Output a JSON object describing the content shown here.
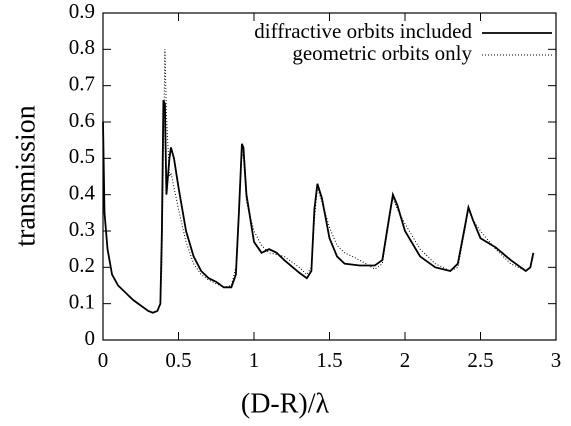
{
  "chart_data": {
    "type": "line",
    "xlabel": "(D-R)/λ",
    "ylabel": "transmission",
    "xlim": [
      0,
      3
    ],
    "xticks": [
      0,
      0.5,
      1,
      1.5,
      2,
      2.5,
      3
    ],
    "ylim": [
      0,
      0.9
    ],
    "yticks": [
      0,
      0.1,
      0.2,
      0.3,
      0.4,
      0.5,
      0.6,
      0.7,
      0.8,
      0.9
    ],
    "legend": "upper right",
    "x": [
      0,
      0.01,
      0.03,
      0.06,
      0.1,
      0.15,
      0.2,
      0.25,
      0.3,
      0.33,
      0.36,
      0.38,
      0.39,
      0.4,
      0.41,
      0.42,
      0.44,
      0.45,
      0.47,
      0.5,
      0.55,
      0.6,
      0.65,
      0.7,
      0.75,
      0.8,
      0.85,
      0.88,
      0.9,
      0.92,
      0.93,
      0.95,
      1.0,
      1.05,
      1.1,
      1.15,
      1.2,
      1.3,
      1.35,
      1.38,
      1.4,
      1.42,
      1.45,
      1.5,
      1.55,
      1.6,
      1.7,
      1.8,
      1.85,
      1.9,
      1.92,
      1.95,
      2.0,
      2.1,
      2.2,
      2.3,
      2.35,
      2.4,
      2.42,
      2.45,
      2.5,
      2.6,
      2.7,
      2.8,
      2.83,
      2.85
    ],
    "series": [
      {
        "name": "diffractive orbits included",
        "color": "#000000",
        "style": "solid",
        "values": [
          0.6,
          0.35,
          0.25,
          0.18,
          0.15,
          0.13,
          0.11,
          0.095,
          0.08,
          0.075,
          0.08,
          0.1,
          0.3,
          0.66,
          0.65,
          0.4,
          0.5,
          0.53,
          0.5,
          0.42,
          0.3,
          0.23,
          0.19,
          0.17,
          0.16,
          0.145,
          0.145,
          0.18,
          0.35,
          0.54,
          0.53,
          0.4,
          0.27,
          0.24,
          0.25,
          0.24,
          0.22,
          0.185,
          0.17,
          0.19,
          0.36,
          0.43,
          0.39,
          0.28,
          0.23,
          0.21,
          0.205,
          0.205,
          0.22,
          0.35,
          0.4,
          0.37,
          0.3,
          0.23,
          0.2,
          0.19,
          0.21,
          0.32,
          0.365,
          0.33,
          0.28,
          0.255,
          0.22,
          0.19,
          0.2,
          0.24
        ]
      },
      {
        "name": "geometric orbits only",
        "color": "#000000",
        "style": "dotted",
        "values": [
          0.6,
          0.35,
          0.25,
          0.18,
          0.15,
          0.13,
          0.11,
          0.095,
          0.08,
          0.075,
          0.08,
          0.1,
          0.2,
          0.5,
          0.8,
          0.62,
          0.45,
          0.46,
          0.42,
          0.36,
          0.27,
          0.21,
          0.18,
          0.165,
          0.155,
          0.145,
          0.15,
          0.2,
          0.36,
          0.52,
          0.5,
          0.38,
          0.3,
          0.26,
          0.24,
          0.235,
          0.23,
          0.2,
          0.18,
          0.2,
          0.33,
          0.42,
          0.38,
          0.31,
          0.26,
          0.24,
          0.22,
          0.195,
          0.21,
          0.34,
          0.39,
          0.36,
          0.32,
          0.25,
          0.21,
          0.19,
          0.2,
          0.31,
          0.36,
          0.33,
          0.3,
          0.25,
          0.21,
          0.19,
          0.2,
          0.23
        ]
      }
    ]
  }
}
